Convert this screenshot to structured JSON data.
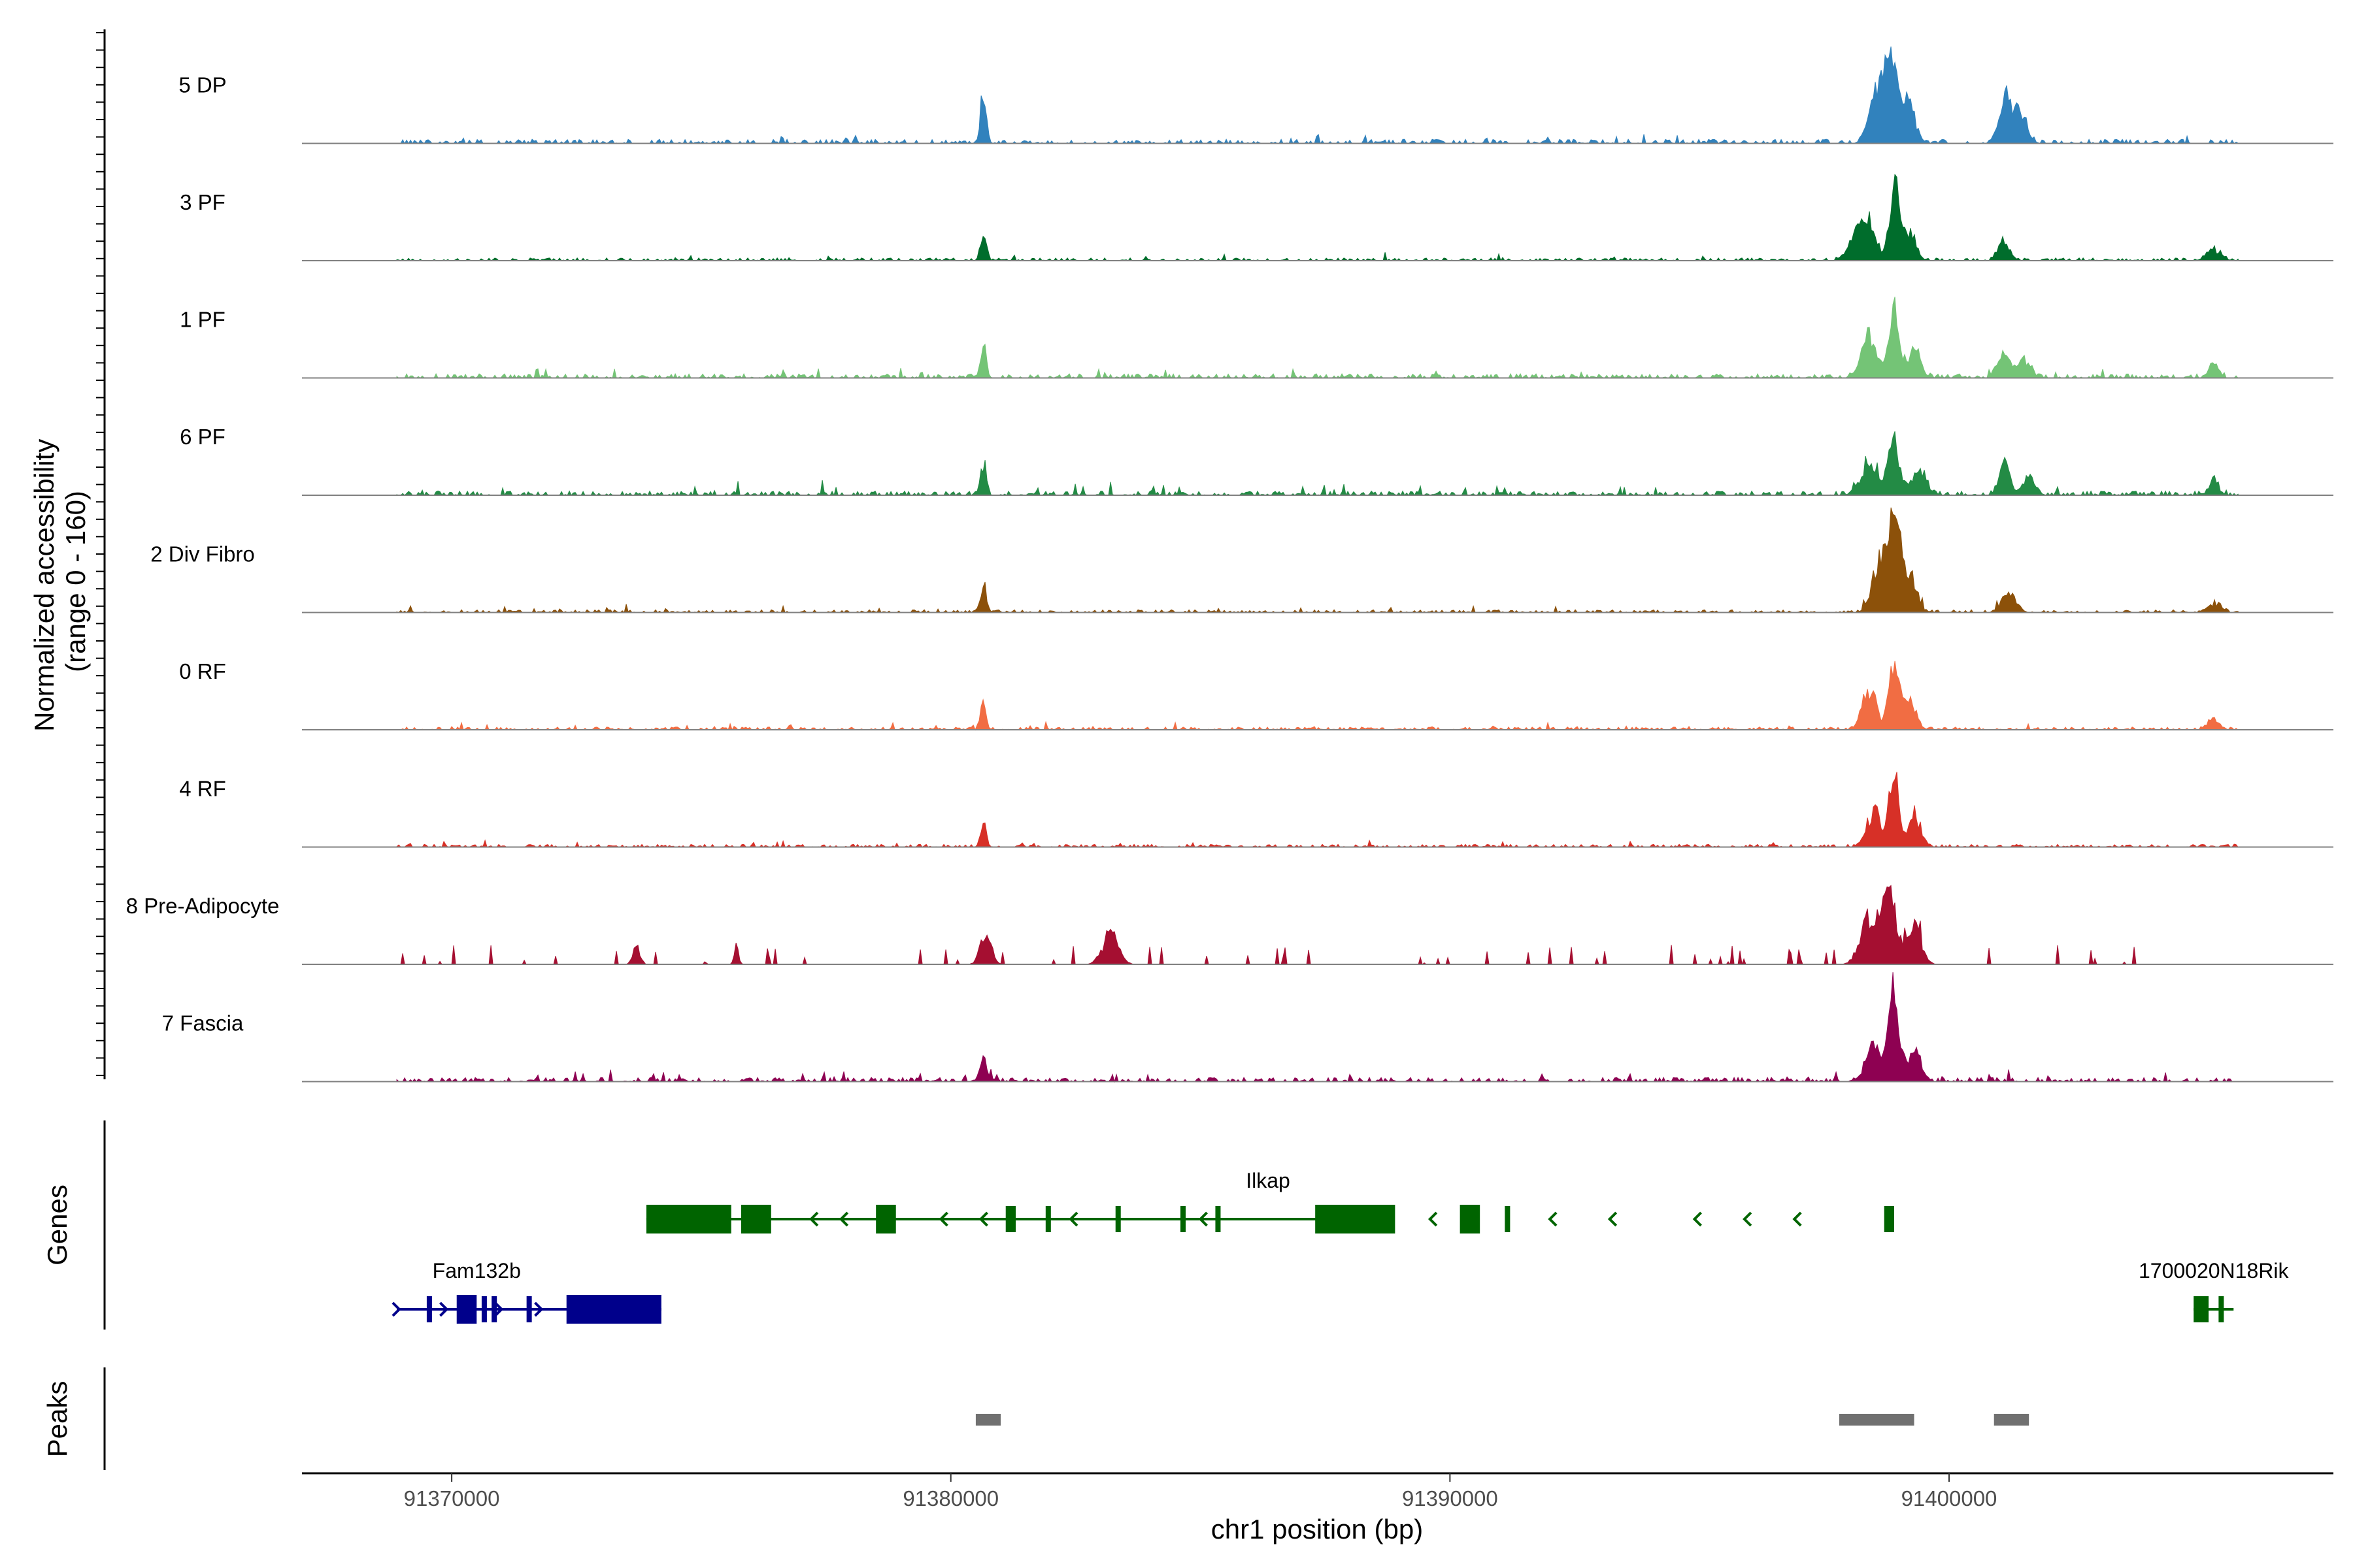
{
  "chart_data": {
    "type": "area",
    "title": "",
    "ylabel": "Normalized accessibility\n(range 0 - 160)",
    "ylabel_lines": [
      "Normalized accessibility",
      "(range 0 - 160)"
    ],
    "xlabel": "chr1 position (bp)",
    "chromosome": "chr1",
    "x_range": [
      91367000,
      91407700
    ],
    "y_range": [
      0,
      160
    ],
    "x_ticks": [
      {
        "value": 91370000,
        "label": "91370000"
      },
      {
        "value": 91380000,
        "label": "91380000"
      },
      {
        "value": 91390000,
        "label": "91390000"
      },
      {
        "value": 91400000,
        "label": "91400000"
      }
    ],
    "tracks": [
      {
        "name": "5 DP",
        "color": "#3182bd",
        "baseline": 6,
        "noise": 12,
        "sparse": false,
        "peaks": [
          [
            91380650,
            100,
            80
          ],
          [
            91398500,
            60,
            200
          ],
          [
            91398900,
            140,
            150
          ],
          [
            91398700,
            90,
            180
          ],
          [
            91399200,
            70,
            180
          ],
          [
            91401100,
            80,
            160
          ],
          [
            91401400,
            60,
            200
          ]
        ]
      },
      {
        "name": "3 PF",
        "color": "#006d2c",
        "baseline": 4,
        "noise": 10,
        "sparse": false,
        "peaks": [
          [
            91380650,
            50,
            80
          ],
          [
            91398900,
            145,
            140
          ],
          [
            91398400,
            70,
            200
          ],
          [
            91398100,
            45,
            200
          ],
          [
            91399200,
            55,
            170
          ],
          [
            91401100,
            40,
            150
          ],
          [
            91405300,
            20,
            200
          ]
        ]
      },
      {
        "name": "1 PF",
        "color": "#74c476",
        "baseline": 6,
        "noise": 14,
        "sparse": false,
        "peaks": [
          [
            91380650,
            60,
            80
          ],
          [
            91398900,
            130,
            140
          ],
          [
            91398400,
            75,
            220
          ],
          [
            91399300,
            55,
            180
          ],
          [
            91401100,
            50,
            170
          ],
          [
            91401500,
            35,
            180
          ],
          [
            91405300,
            25,
            140
          ]
        ]
      },
      {
        "name": "6 PF",
        "color": "#238b45",
        "baseline": 6,
        "noise": 16,
        "sparse": false,
        "peaks": [
          [
            91380650,
            60,
            80
          ],
          [
            91398900,
            100,
            160
          ],
          [
            91398400,
            60,
            240
          ],
          [
            91399400,
            50,
            200
          ],
          [
            91401100,
            55,
            150
          ],
          [
            91401600,
            30,
            180
          ],
          [
            91405300,
            35,
            120
          ]
        ]
      },
      {
        "name": "2 Div Fibro",
        "color": "#8c510a",
        "baseline": 4,
        "noise": 10,
        "sparse": false,
        "peaks": [
          [
            91380650,
            50,
            80
          ],
          [
            91398900,
            175,
            160
          ],
          [
            91398600,
            90,
            200
          ],
          [
            91399200,
            70,
            200
          ],
          [
            91401200,
            35,
            200
          ],
          [
            91405300,
            15,
            200
          ]
        ]
      },
      {
        "name": "0 RF",
        "color": "#f16d43",
        "baseline": 4,
        "noise": 8,
        "sparse": false,
        "peaks": [
          [
            91380650,
            45,
            80
          ],
          [
            91398900,
            130,
            140
          ],
          [
            91398400,
            70,
            200
          ],
          [
            91399200,
            55,
            180
          ],
          [
            91405300,
            20,
            150
          ]
        ]
      },
      {
        "name": "4 RF",
        "color": "#d73027",
        "baseline": 4,
        "noise": 9,
        "sparse": false,
        "peaks": [
          [
            91380650,
            45,
            80
          ],
          [
            91398900,
            145,
            130
          ],
          [
            91398500,
            65,
            200
          ],
          [
            91399300,
            60,
            180
          ]
        ]
      },
      {
        "name": "8 Pre-Adipocyte",
        "color": "#a50f31",
        "baseline": 0,
        "noise": 28,
        "sparse": true,
        "peaks": [
          [
            91380700,
            60,
            150
          ],
          [
            91383200,
            55,
            220
          ],
          [
            91398800,
            120,
            220
          ],
          [
            91398400,
            80,
            250
          ],
          [
            91399300,
            70,
            200
          ],
          [
            91375700,
            40,
            60
          ],
          [
            91373700,
            35,
            100
          ]
        ]
      },
      {
        "name": "7 Fascia",
        "color": "#8e0152",
        "baseline": 6,
        "noise": 14,
        "sparse": false,
        "peaks": [
          [
            91380650,
            40,
            100
          ],
          [
            91398900,
            160,
            150
          ],
          [
            91398500,
            70,
            220
          ],
          [
            91399300,
            50,
            200
          ]
        ]
      }
    ],
    "genes": [
      {
        "name": "Ilkap",
        "color": "#006400",
        "strand": "-",
        "start": 91373900,
        "end": 91388300,
        "row": 0,
        "exons": [
          [
            91373900,
            91375600
          ],
          [
            91375800,
            91376400
          ],
          [
            91378500,
            91378900
          ],
          [
            91381100,
            91381300
          ],
          [
            91381900,
            91382000
          ],
          [
            91383300,
            91383400
          ],
          [
            91384600,
            91384700
          ],
          [
            91385300,
            91385400
          ],
          [
            91387300,
            91388900
          ],
          [
            91390200,
            91390600
          ],
          [
            91391100,
            91391200
          ],
          [
            91398700,
            91398900
          ]
        ],
        "arrows": [
          91377200,
          91377800,
          91379800,
          91380600,
          91382400,
          91385000,
          91389600,
          91392000,
          91393200,
          91394900,
          91395900,
          91396900
        ]
      },
      {
        "name": "Fam132b",
        "color": "#00008b",
        "strand": "+",
        "start": 91368900,
        "end": 91374200,
        "row": 1,
        "exons": [
          [
            91369500,
            91369600
          ],
          [
            91370100,
            91370500
          ],
          [
            91370600,
            91370700
          ],
          [
            91370800,
            91370900
          ],
          [
            91371500,
            91371600
          ],
          [
            91372300,
            91374200
          ]
        ],
        "arrows": [
          91368950,
          91369900,
          91371000,
          91371800
        ]
      },
      {
        "name": "1700020N18Rik",
        "color": "#006400",
        "strand": "+",
        "start": 91404900,
        "end": 91405700,
        "row": 1,
        "exons": [
          [
            91404900,
            91405200
          ],
          [
            91405400,
            91405500
          ]
        ],
        "arrows": []
      }
    ],
    "peaks": [
      {
        "start": 91380500,
        "end": 91381000
      },
      {
        "start": 91397800,
        "end": 91399300
      },
      {
        "start": 91400900,
        "end": 91401600
      }
    ],
    "panel_labels": {
      "genes": "Genes",
      "peaks": "Peaks"
    }
  }
}
